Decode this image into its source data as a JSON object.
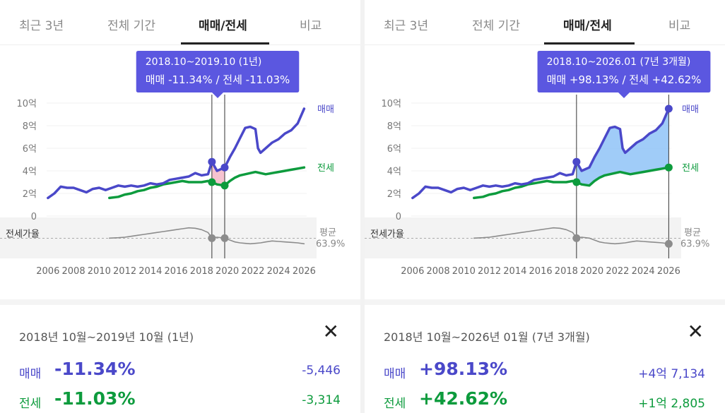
{
  "tabs": [
    "최근 3년",
    "전체 기간",
    "매매/전세",
    "비교"
  ],
  "active_tab_index": 2,
  "colors": {
    "sale": "#4a48c9",
    "jeonse": "#0d9b3d",
    "ratio": "#8c8c8c",
    "tooltip_bg": "#5b57e0",
    "loss_fill": "#f4b8c8",
    "gain_fill": "#8fc3f7"
  },
  "panels": [
    {
      "tooltip": {
        "range": "2018.10~2019.10 (1년)",
        "values": "매매 -11.34%  /  전세 -11.03%"
      },
      "summary": {
        "period": "2018년 10월~2019년 10월 (1년)",
        "close": "✕",
        "sale_label": "매매",
        "sale_pct": "-11.34%",
        "sale_amount": "-5,446",
        "jeonse_label": "전세",
        "jeonse_pct": "-11.03%",
        "jeonse_amount": "-3,314"
      },
      "range_years": [
        2018.8,
        2019.8
      ]
    },
    {
      "tooltip": {
        "range": "2018.10~2026.01 (7년 3개월)",
        "values": "매매 +98.13%  /  전세 +42.62%"
      },
      "summary": {
        "period": "2018년 10월~2026년 01월 (7년 3개월)",
        "close": "✕",
        "sale_label": "매매",
        "sale_pct": "+98.13%",
        "sale_amount": "+4억 7,134",
        "jeonse_label": "전세",
        "jeonse_pct": "+42.62%",
        "jeonse_amount": "+1억 2,805"
      },
      "range_years": [
        2018.8,
        2026.0
      ]
    }
  ],
  "chart_data": {
    "type": "line",
    "xlim": [
      2005.9,
      2026.2
    ],
    "ylim": [
      0,
      10
    ],
    "y_tick_values": [
      0,
      2,
      4,
      6,
      8,
      10
    ],
    "y_tick_labels": [
      "0",
      "2억",
      "4억",
      "6억",
      "8억",
      "10억"
    ],
    "x_ticks": [
      "2006",
      "2008",
      "2010",
      "2012",
      "2014",
      "2016",
      "2018",
      "2020",
      "2022",
      "2024",
      "2026"
    ],
    "series_labels": {
      "sale": "매매",
      "jeonse": "전세"
    },
    "ratio_label": "전세가율",
    "avg_label": "평균",
    "avg_value": "63.9%",
    "avg_ratio": 63.9,
    "series": [
      {
        "name": "매매",
        "x": [
          2006.0,
          2006.5,
          2007.0,
          2007.5,
          2008.0,
          2008.5,
          2009.0,
          2009.5,
          2010.0,
          2010.5,
          2011.0,
          2011.5,
          2012.0,
          2012.5,
          2013.0,
          2013.5,
          2014.0,
          2014.5,
          2015.0,
          2015.5,
          2016.0,
          2016.5,
          2017.0,
          2017.5,
          2018.0,
          2018.5,
          2018.8,
          2019.2,
          2019.8,
          2020.2,
          2020.6,
          2021.0,
          2021.4,
          2021.8,
          2022.2,
          2022.4,
          2022.6,
          2023.0,
          2023.5,
          2024.0,
          2024.5,
          2025.0,
          2025.5,
          2026.0
        ],
        "values": [
          1.6,
          2.0,
          2.6,
          2.5,
          2.5,
          2.3,
          2.1,
          2.4,
          2.5,
          2.3,
          2.5,
          2.7,
          2.6,
          2.7,
          2.6,
          2.7,
          2.9,
          2.8,
          2.9,
          3.2,
          3.3,
          3.4,
          3.5,
          3.8,
          3.6,
          3.7,
          4.8,
          4.0,
          4.3,
          5.2,
          6.0,
          6.9,
          7.8,
          7.9,
          7.7,
          6.0,
          5.6,
          6.0,
          6.5,
          6.8,
          7.3,
          7.6,
          8.2,
          9.5
        ]
      },
      {
        "name": "전세",
        "x": [
          2010.8,
          2011.5,
          2012.0,
          2012.5,
          2013.0,
          2013.5,
          2014.0,
          2014.5,
          2015.0,
          2015.5,
          2016.0,
          2016.5,
          2017.0,
          2017.5,
          2018.0,
          2018.5,
          2018.8,
          2019.2,
          2019.8,
          2020.2,
          2020.6,
          2021.0,
          2021.4,
          2021.8,
          2022.2,
          2022.6,
          2023.0,
          2023.5,
          2024.0,
          2024.5,
          2025.0,
          2025.5,
          2026.0
        ],
        "values": [
          1.6,
          1.7,
          1.9,
          2.0,
          2.2,
          2.3,
          2.5,
          2.6,
          2.8,
          2.9,
          3.0,
          3.1,
          3.0,
          3.0,
          3.0,
          3.1,
          3.0,
          2.8,
          2.7,
          3.1,
          3.4,
          3.6,
          3.7,
          3.8,
          3.9,
          3.8,
          3.7,
          3.8,
          3.9,
          4.0,
          4.1,
          4.2,
          4.3
        ]
      },
      {
        "name": "전세가율",
        "x": [
          2010.8,
          2011.5,
          2012.0,
          2012.5,
          2013.0,
          2013.5,
          2014.0,
          2014.5,
          2015.0,
          2015.5,
          2016.0,
          2016.5,
          2017.0,
          2017.5,
          2018.0,
          2018.5,
          2018.8,
          2019.2,
          2019.8,
          2020.2,
          2020.6,
          2021.0,
          2021.4,
          2021.8,
          2022.2,
          2022.6,
          2023.0,
          2023.5,
          2024.0,
          2024.5,
          2025.0,
          2025.5,
          2026.0
        ],
        "values": [
          64,
          64.5,
          65,
          66,
          67,
          68,
          69,
          70,
          71,
          72,
          73,
          74,
          75,
          74.5,
          73,
          70,
          64,
          65,
          64,
          62,
          60,
          59,
          58.5,
          58,
          58.5,
          59,
          60,
          61,
          60.5,
          60,
          59.5,
          59,
          58
        ]
      }
    ]
  }
}
